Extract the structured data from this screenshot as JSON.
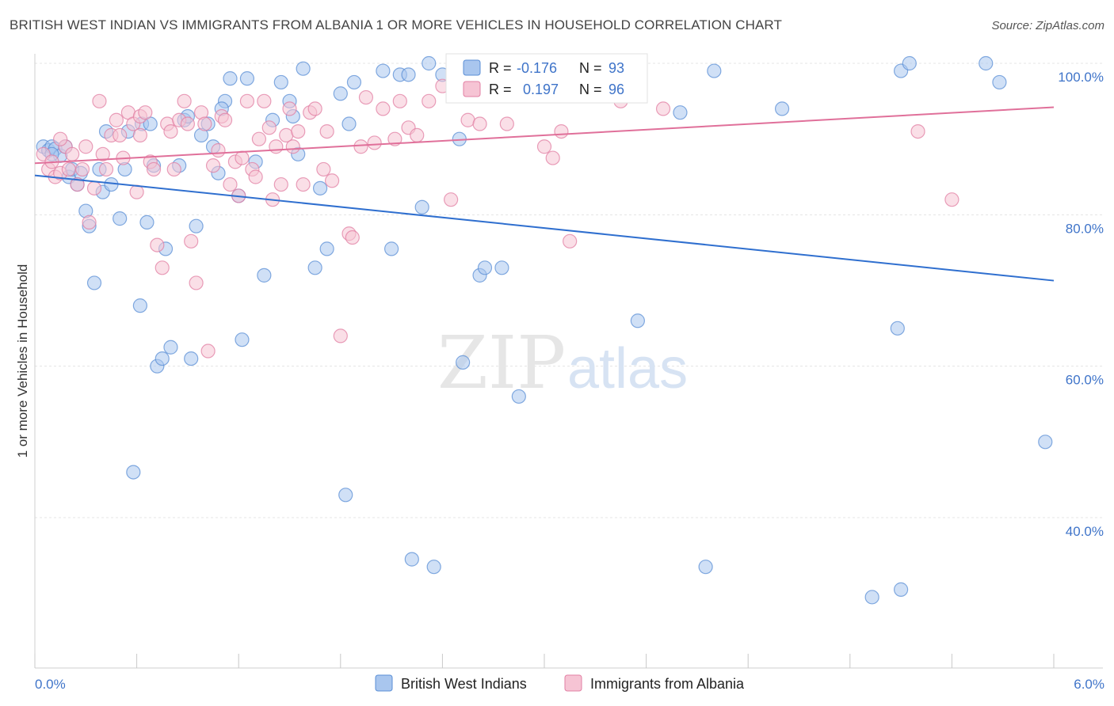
{
  "title": "BRITISH WEST INDIAN VS IMMIGRANTS FROM ALBANIA 1 OR MORE VEHICLES IN HOUSEHOLD CORRELATION CHART",
  "source": "Source: ZipAtlas.com",
  "watermark": {
    "zip": "ZIP",
    "atlas": "atlas"
  },
  "legend": {
    "r_label": "R =",
    "n_label": "N =",
    "s1": {
      "r": "-0.176",
      "n": "93"
    },
    "s2": {
      "r": "0.197",
      "n": "96"
    }
  },
  "colors": {
    "blue": "#5b8fd6",
    "blue_fill": "#a9c6ee",
    "blue_line": "#2f6fcf",
    "pink": "#e27fa3",
    "pink_fill": "#f6c4d4",
    "pink_line": "#e0709a"
  },
  "chart_data": {
    "type": "scatter",
    "title": "BRITISH WEST INDIAN VS IMMIGRANTS FROM ALBANIA 1 OR MORE VEHICLES IN HOUSEHOLD CORRELATION CHART",
    "xlabel": "",
    "ylabel": "1 or more Vehicles in Household",
    "xlim": [
      0,
      6
    ],
    "ylim": [
      20,
      101
    ],
    "x_tick_labels": [
      "0.0%",
      "6.0%"
    ],
    "y_ticks": [
      40,
      60,
      80,
      100
    ],
    "y_tick_labels": [
      "40.0%",
      "60.0%",
      "80.0%",
      "100.0%"
    ],
    "grid": true,
    "legend_position": "top-center",
    "series": [
      {
        "name": "British West Indians",
        "r": -0.176,
        "n": 93,
        "trend": [
          [
            0,
            85.2
          ],
          [
            6,
            71.3
          ]
        ],
        "points": [
          [
            0.05,
            89
          ],
          [
            0.08,
            88.5
          ],
          [
            0.1,
            89
          ],
          [
            0.12,
            88.7
          ],
          [
            0.15,
            87.8
          ],
          [
            0.18,
            89
          ],
          [
            0.2,
            85
          ],
          [
            0.22,
            86
          ],
          [
            0.25,
            84
          ],
          [
            0.27,
            85.5
          ],
          [
            0.3,
            80.5
          ],
          [
            0.32,
            78.5
          ],
          [
            0.35,
            71
          ],
          [
            0.4,
            83
          ],
          [
            0.42,
            91
          ],
          [
            0.45,
            84
          ],
          [
            0.5,
            79.5
          ],
          [
            0.53,
            86
          ],
          [
            0.55,
            91
          ],
          [
            0.58,
            46
          ],
          [
            0.62,
            68
          ],
          [
            0.63,
            92
          ],
          [
            0.66,
            79
          ],
          [
            0.7,
            86.5
          ],
          [
            0.72,
            60
          ],
          [
            0.75,
            61
          ],
          [
            0.77,
            75.5
          ],
          [
            0.8,
            62.5
          ],
          [
            0.85,
            86.5
          ],
          [
            0.88,
            92.5
          ],
          [
            0.9,
            93
          ],
          [
            0.92,
            61
          ],
          [
            0.95,
            78.5
          ],
          [
            0.98,
            90.5
          ],
          [
            1.02,
            92
          ],
          [
            1.05,
            89
          ],
          [
            1.08,
            85.5
          ],
          [
            1.12,
            95
          ],
          [
            1.15,
            98
          ],
          [
            1.2,
            82.5
          ],
          [
            1.22,
            63.5
          ],
          [
            1.25,
            98
          ],
          [
            1.3,
            87
          ],
          [
            1.35,
            72
          ],
          [
            1.4,
            92.5
          ],
          [
            1.45,
            97.5
          ],
          [
            1.5,
            95
          ],
          [
            1.52,
            93
          ],
          [
            1.55,
            88
          ],
          [
            1.58,
            99.3
          ],
          [
            1.65,
            73
          ],
          [
            1.68,
            83.5
          ],
          [
            1.72,
            75.5
          ],
          [
            1.8,
            96
          ],
          [
            1.83,
            43
          ],
          [
            1.85,
            92
          ],
          [
            1.88,
            97.5
          ],
          [
            2.05,
            99
          ],
          [
            2.1,
            75.5
          ],
          [
            2.15,
            98.5
          ],
          [
            2.2,
            98.5
          ],
          [
            2.22,
            34.5
          ],
          [
            2.28,
            81
          ],
          [
            2.32,
            100
          ],
          [
            2.35,
            33.5
          ],
          [
            2.4,
            98.5
          ],
          [
            2.5,
            90
          ],
          [
            2.52,
            60.5
          ],
          [
            2.55,
            97
          ],
          [
            2.62,
            72
          ],
          [
            2.65,
            73
          ],
          [
            2.75,
            73
          ],
          [
            2.85,
            56
          ],
          [
            3.05,
            99
          ],
          [
            3.1,
            96
          ],
          [
            3.55,
            66
          ],
          [
            3.8,
            93.5
          ],
          [
            3.95,
            33.5
          ],
          [
            4.0,
            99
          ],
          [
            4.4,
            94
          ],
          [
            5.1,
            99
          ],
          [
            5.15,
            100
          ],
          [
            4.93,
            29.5
          ],
          [
            5.1,
            30.5
          ],
          [
            5.08,
            65
          ],
          [
            5.6,
            100
          ],
          [
            5.68,
            97.5
          ],
          [
            5.95,
            50
          ],
          [
            0.1,
            88
          ],
          [
            0.38,
            86
          ],
          [
            1.1,
            94
          ],
          [
            0.68,
            92
          ],
          [
            2.9,
            100
          ]
        ]
      },
      {
        "name": "Immigrants from Albania",
        "r": 0.197,
        "n": 96,
        "trend": [
          [
            0,
            86.8
          ],
          [
            6,
            94.2
          ]
        ],
        "points": [
          [
            0.05,
            88
          ],
          [
            0.08,
            86
          ],
          [
            0.1,
            87
          ],
          [
            0.12,
            85
          ],
          [
            0.15,
            85.5
          ],
          [
            0.18,
            89
          ],
          [
            0.2,
            86
          ],
          [
            0.22,
            88
          ],
          [
            0.25,
            84
          ],
          [
            0.28,
            86
          ],
          [
            0.3,
            89
          ],
          [
            0.32,
            79
          ],
          [
            0.35,
            83.5
          ],
          [
            0.38,
            95
          ],
          [
            0.4,
            88
          ],
          [
            0.42,
            86
          ],
          [
            0.45,
            90.5
          ],
          [
            0.48,
            92.5
          ],
          [
            0.5,
            90.5
          ],
          [
            0.52,
            87.5
          ],
          [
            0.55,
            93.5
          ],
          [
            0.58,
            92
          ],
          [
            0.6,
            83
          ],
          [
            0.62,
            93
          ],
          [
            0.65,
            93.5
          ],
          [
            0.68,
            87
          ],
          [
            0.7,
            86
          ],
          [
            0.72,
            76
          ],
          [
            0.75,
            73
          ],
          [
            0.78,
            92
          ],
          [
            0.8,
            91
          ],
          [
            0.82,
            86
          ],
          [
            0.85,
            92.5
          ],
          [
            0.88,
            95
          ],
          [
            0.9,
            92
          ],
          [
            0.92,
            76.5
          ],
          [
            0.95,
            71
          ],
          [
            0.98,
            93.5
          ],
          [
            1.0,
            92
          ],
          [
            1.02,
            62
          ],
          [
            1.05,
            86.5
          ],
          [
            1.08,
            88.5
          ],
          [
            1.1,
            93
          ],
          [
            1.12,
            92.5
          ],
          [
            1.15,
            84
          ],
          [
            1.18,
            87
          ],
          [
            1.2,
            82.5
          ],
          [
            1.22,
            87.5
          ],
          [
            1.25,
            95
          ],
          [
            1.28,
            86
          ],
          [
            1.3,
            85
          ],
          [
            1.32,
            90
          ],
          [
            1.35,
            95
          ],
          [
            1.38,
            91.5
          ],
          [
            1.4,
            82
          ],
          [
            1.42,
            89
          ],
          [
            1.45,
            84
          ],
          [
            1.48,
            90.5
          ],
          [
            1.5,
            94
          ],
          [
            1.52,
            89
          ],
          [
            1.55,
            91
          ],
          [
            1.58,
            84
          ],
          [
            1.62,
            93.5
          ],
          [
            1.65,
            94
          ],
          [
            1.7,
            86
          ],
          [
            1.72,
            91
          ],
          [
            1.75,
            84.5
          ],
          [
            1.8,
            64
          ],
          [
            1.85,
            77.5
          ],
          [
            1.87,
            77
          ],
          [
            1.92,
            89
          ],
          [
            1.95,
            95.5
          ],
          [
            2.0,
            89.5
          ],
          [
            2.05,
            94
          ],
          [
            2.12,
            90
          ],
          [
            2.15,
            95
          ],
          [
            2.2,
            91.5
          ],
          [
            2.25,
            90.5
          ],
          [
            2.32,
            95
          ],
          [
            2.4,
            97
          ],
          [
            2.45,
            82
          ],
          [
            2.55,
            92.5
          ],
          [
            2.62,
            92
          ],
          [
            2.72,
            97
          ],
          [
            2.78,
            92
          ],
          [
            3.0,
            89
          ],
          [
            3.05,
            87.5
          ],
          [
            3.1,
            91
          ],
          [
            3.15,
            76.5
          ],
          [
            3.38,
            97.5
          ],
          [
            3.45,
            95
          ],
          [
            3.7,
            94
          ],
          [
            5.2,
            91
          ],
          [
            5.4,
            82
          ],
          [
            0.15,
            90
          ],
          [
            0.62,
            90.5
          ]
        ]
      }
    ]
  },
  "bottom_legend": {
    "s1": "British West Indians",
    "s2": "Immigrants from Albania"
  }
}
